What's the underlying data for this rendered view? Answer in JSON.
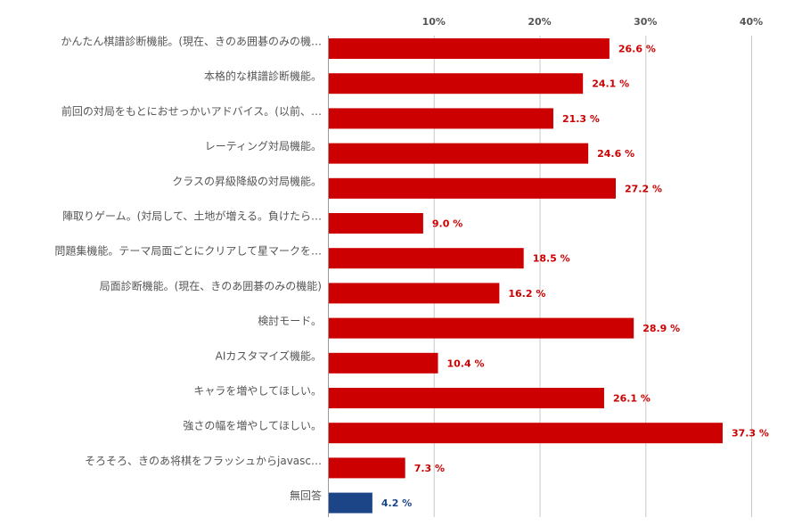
{
  "chart_data": {
    "type": "bar",
    "orientation": "horizontal",
    "title": "",
    "xlabel": "",
    "ylabel": "",
    "xlim": [
      0,
      40
    ],
    "ticks": [
      10,
      20,
      30,
      40
    ],
    "tick_labels": [
      "10%",
      "20%",
      "30%",
      "40%"
    ],
    "grid": true,
    "value_suffix": " %",
    "categories": [
      "かんたん棋譜診断機能。(現在、きのあ囲碁のみの機…",
      "本格的な棋譜診断機能。",
      "前回の対局をもとにおせっかいアドバイス。(以前、…",
      "レーティング対局機能。",
      "クラスの昇級降級の対局機能。",
      "陣取りゲーム。(対局して、土地が増える。負けたら…",
      "問題集機能。テーマ局面ごとにクリアして星マークを…",
      "局面診断機能。(現在、きのあ囲碁のみの機能)",
      "検討モード。",
      "AIカスタマイズ機能。",
      "キャラを増やしてほしい。",
      "強さの幅を増やしてほしい。",
      "そろそろ、きのあ将棋をフラッシュからjavasc…",
      "無回答"
    ],
    "values": [
      26.6,
      24.1,
      21.3,
      24.6,
      27.2,
      9.0,
      18.5,
      16.2,
      28.9,
      10.4,
      26.1,
      37.3,
      7.3,
      4.2
    ],
    "value_labels": [
      "26.6 %",
      "24.1 %",
      "21.3 %",
      "24.6 %",
      "27.2 %",
      "9.0 %",
      "18.5 %",
      "16.2 %",
      "28.9 %",
      "10.4 %",
      "26.1 %",
      "37.3 %",
      "7.3 %",
      "4.2 %"
    ],
    "colors": {
      "main": "#cc0000",
      "highlight": "#1c4587",
      "highlight_categories": [
        "無回答"
      ]
    }
  }
}
